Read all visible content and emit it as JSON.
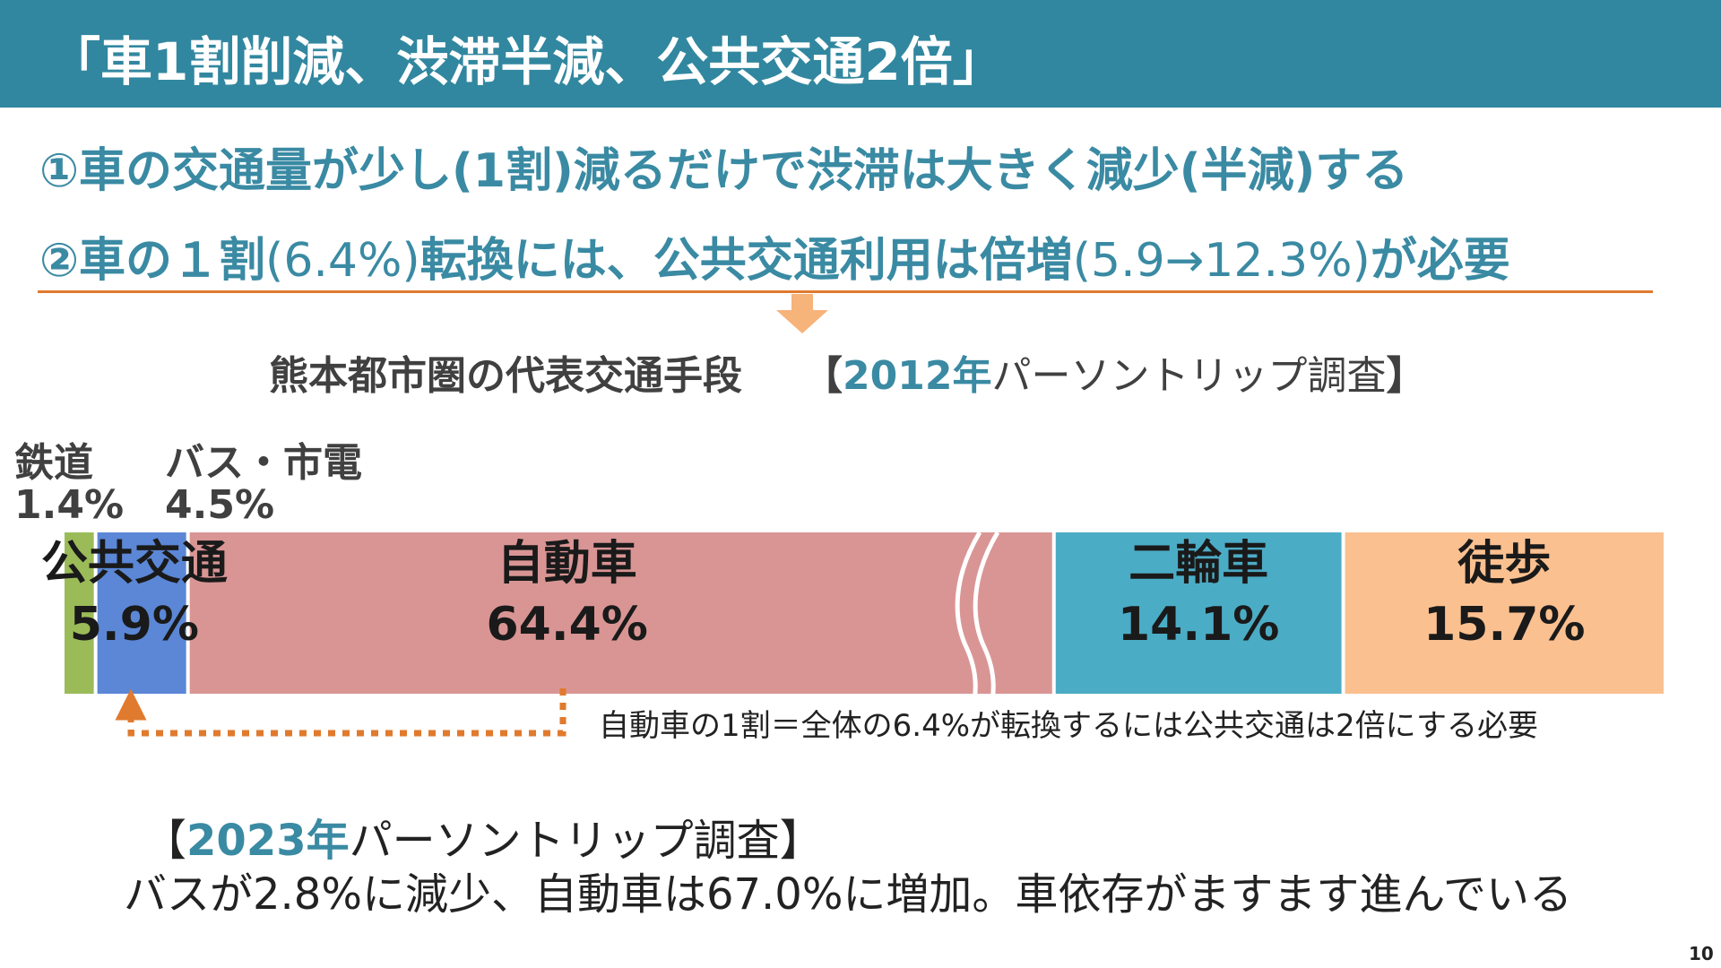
{
  "header": {
    "title": "「車1割削減、渋滞半減、公共交通2倍」"
  },
  "points": {
    "p1": "①車の交通量が少し(1割)減るだけで渋滞は大きく減少(半減)する",
    "p2_a": "②車の１割",
    "p2_b": "(6.4%)",
    "p2_c": "転換には、公共交通利用は倍増",
    "p2_d": "(5.9→12.3%)",
    "p2_e": "が必要"
  },
  "chart_title": {
    "main": "熊本都市圏の代表交通手段",
    "bracket_open": "【",
    "year": "2012年",
    "survey": "パーソントリップ調査",
    "bracket_close": "】"
  },
  "chart_data": {
    "type": "bar",
    "stacked": true,
    "orientation": "horizontal",
    "unit": "%",
    "segments": [
      {
        "name": "鉄道",
        "value": 1.4,
        "color": "#9bbb59",
        "label_outside": true,
        "group": "公共交通"
      },
      {
        "name": "バス・市電",
        "value": 4.5,
        "color": "#5b87d6",
        "label_outside": true,
        "group": "公共交通"
      },
      {
        "name": "自動車",
        "value": 64.4,
        "color": "#d99594",
        "break": true
      },
      {
        "name": "二輪車",
        "value": 14.1,
        "color": "#4bacc6"
      },
      {
        "name": "徒歩",
        "value": 15.7,
        "color": "#fac090"
      }
    ],
    "outside_labels": [
      {
        "name": "鉄道",
        "value_text": "1.4%"
      },
      {
        "name": "バス・市電",
        "value_text": "4.5%"
      }
    ],
    "group_label": {
      "name": "公共交通",
      "value_text": "5.9%"
    },
    "segment_labels": [
      {
        "name": "自動車",
        "value_text": "64.4%"
      },
      {
        "name": "二輪車",
        "value_text": "14.1%"
      },
      {
        "name": "徒歩",
        "value_text": "15.7%"
      }
    ]
  },
  "note": "自動車の1割＝全体の6.4%が転換するには公共交通は2倍にする必要",
  "survey_2023": {
    "bracket_open": "【",
    "year": "2023年",
    "survey": "パーソントリップ調査",
    "bracket_close": "】",
    "text": "バスが2.8%に減少、自動車は67.0%に増加。車依存がますます進んでいる"
  },
  "page_number": "10",
  "colors": {
    "header": "#31879f",
    "accent_teal": "#3a8aa3",
    "accent_orange": "#e07a2e",
    "arrow_light": "#f6b37a"
  }
}
